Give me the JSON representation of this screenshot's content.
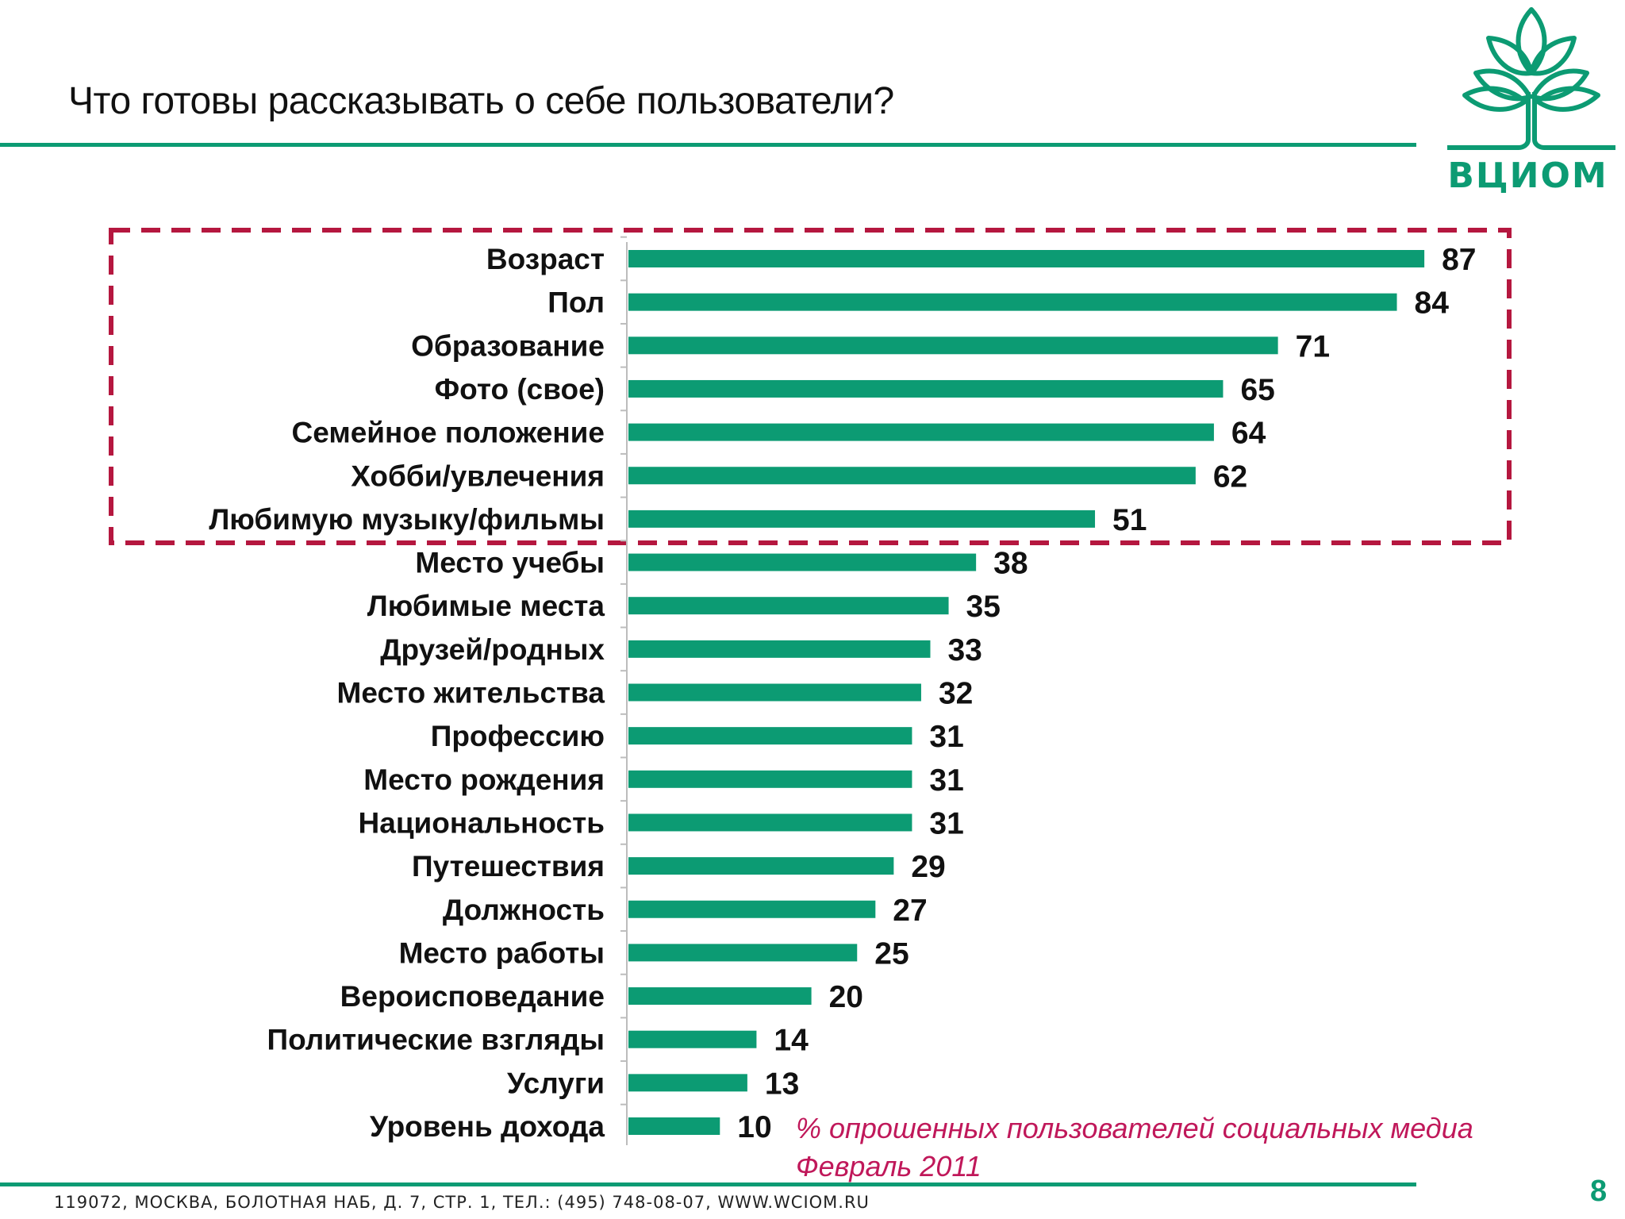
{
  "slide": {
    "title": "Что готовы рассказывать о себе пользователи?",
    "logo_text": "ВЦИОМ",
    "note_line1": "% опрошенных пользователей социальных медиа",
    "note_line2": "Февраль 2011",
    "footer": "119072, МОСКВА, БОЛОТНАЯ НАБ, Д. 7, СТР. 1, ТЕЛ.: (495) 748-08-07, WWW.WCIOM.RU",
    "page_number": "8"
  },
  "colors": {
    "accent": "#0c9b73",
    "highlight_box": "#b5173f",
    "note": "#c0185a"
  },
  "chart_data": {
    "type": "bar",
    "orientation": "horizontal",
    "categories": [
      "Возраст",
      "Пол",
      "Образование",
      "Фото (свое)",
      "Семейное положение",
      "Хобби/увлечения",
      "Любимую музыку/фильмы",
      "Место учебы",
      "Любимые места",
      "Друзей/родных",
      "Место жительства",
      "Профессию",
      "Место рождения",
      "Национальность",
      "Путешествия",
      "Должность",
      "Место работы",
      "Вероисповедание",
      "Политические взгляды",
      "Услуги",
      "Уровень дохода"
    ],
    "values": [
      87,
      84,
      71,
      65,
      64,
      62,
      51,
      38,
      35,
      33,
      32,
      31,
      31,
      31,
      29,
      27,
      25,
      20,
      14,
      13,
      10
    ],
    "data_labels": true,
    "xlim": [
      0,
      100
    ],
    "grid": false,
    "legend": "none",
    "highlighted_categories": [
      0,
      1,
      2,
      3,
      4,
      5,
      6
    ]
  }
}
